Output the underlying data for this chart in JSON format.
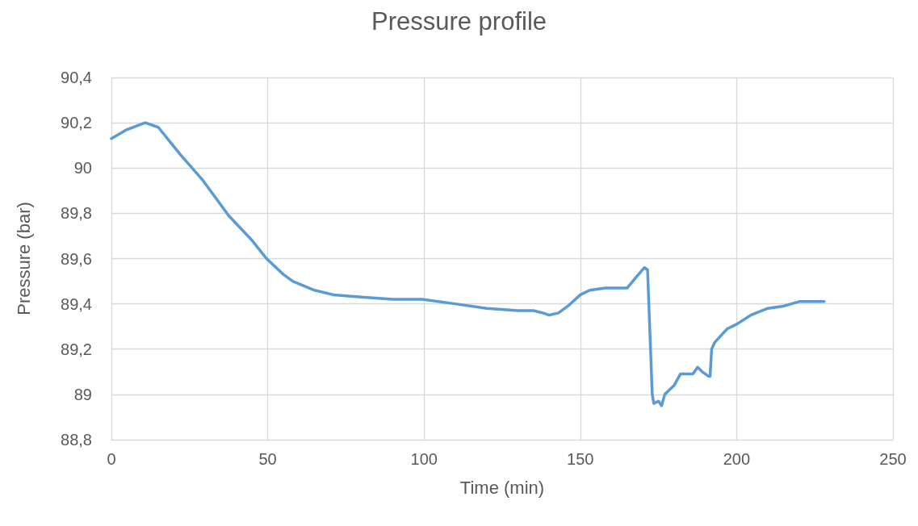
{
  "chart_data": {
    "type": "line",
    "title": "Pressure profile",
    "xlabel": "Time (min)",
    "ylabel": "Pressure (bar)",
    "x": [
      0,
      5,
      10.8,
      15,
      22,
      29,
      37.5,
      45,
      49.6,
      55,
      58,
      65,
      71,
      80,
      90,
      99.4,
      110,
      120,
      130,
      135,
      138,
      140,
      143,
      146,
      150,
      153,
      158,
      165,
      168,
      170.5,
      171.5,
      173,
      173.5,
      175,
      176,
      177,
      178.5,
      180,
      182,
      186,
      187.5,
      189,
      191,
      191.5,
      192,
      193,
      195,
      197,
      200,
      204.5,
      210,
      215,
      220,
      225,
      228
    ],
    "series": [
      {
        "color": "#5b9bd5",
        "values": [
          90.13,
          90.17,
          90.2,
          90.18,
          90.06,
          89.95,
          89.79,
          89.68,
          89.6,
          89.53,
          89.5,
          89.46,
          89.44,
          89.43,
          89.42,
          89.42,
          89.4,
          89.38,
          89.37,
          89.37,
          89.36,
          89.35,
          89.36,
          89.39,
          89.44,
          89.46,
          89.47,
          89.47,
          89.52,
          89.56,
          89.55,
          89.0,
          88.96,
          88.97,
          88.95,
          89.0,
          89.02,
          89.04,
          89.09,
          89.09,
          89.12,
          89.1,
          89.08,
          89.08,
          89.2,
          89.23,
          89.26,
          89.29,
          89.31,
          89.35,
          89.38,
          89.39,
          89.41,
          89.41,
          89.41
        ]
      }
    ],
    "xlim": [
      0,
      250
    ],
    "xticks": [
      0,
      50,
      100,
      150,
      200,
      250
    ],
    "ylim": [
      88.8,
      90.4
    ],
    "yticks": [
      {
        "value": 88.8,
        "label": "88,8"
      },
      {
        "value": 89,
        "label": "89"
      },
      {
        "value": 89.2,
        "label": "89,2"
      },
      {
        "value": 89.4,
        "label": "89,4"
      },
      {
        "value": 89.6,
        "label": "89,6"
      },
      {
        "value": 89.8,
        "label": "89,8"
      },
      {
        "value": 90,
        "label": "90"
      },
      {
        "value": 90.2,
        "label": "90,2"
      },
      {
        "value": 90.4,
        "label": "90,4"
      }
    ],
    "grid": true,
    "marker": "none",
    "line_style": "solid"
  }
}
